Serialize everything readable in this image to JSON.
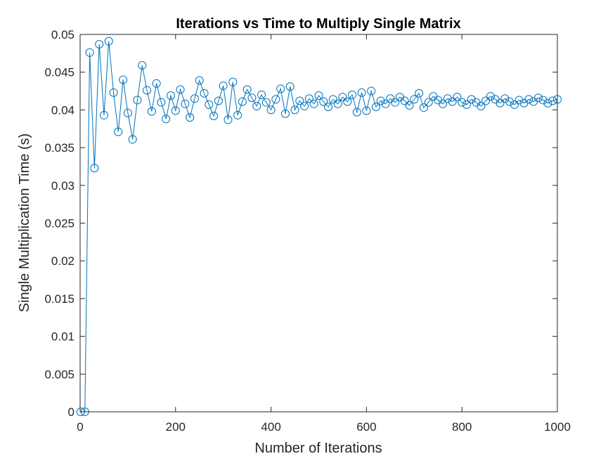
{
  "chart_data": {
    "type": "line",
    "title": "Iterations vs Time to Multiply Single Matrix",
    "xlabel": "Number of Iterations",
    "ylabel": "Single Multiplication Time (s)",
    "xlim": [
      0,
      1000
    ],
    "ylim": [
      0,
      0.05
    ],
    "xticks": [
      0,
      200,
      400,
      600,
      800,
      1000
    ],
    "yticks": [
      0,
      0.005,
      0.01,
      0.015,
      0.02,
      0.025,
      0.03,
      0.035,
      0.04,
      0.045,
      0.05
    ],
    "xtick_labels": [
      "0",
      "200",
      "400",
      "600",
      "800",
      "1000"
    ],
    "ytick_labels": [
      "0",
      "0.005",
      "0.01",
      "0.015",
      "0.02",
      "0.025",
      "0.03",
      "0.035",
      "0.04",
      "0.045",
      "0.05"
    ],
    "grid": false,
    "marker": "circle",
    "color": "#0072BD",
    "series": [
      {
        "x": [
          1,
          10,
          20,
          30,
          40,
          50,
          60,
          70,
          80,
          90,
          100,
          110,
          120,
          130,
          140,
          150,
          160,
          170,
          180,
          190,
          200,
          210,
          220,
          230,
          240,
          250,
          260,
          270,
          280,
          290,
          300,
          310,
          320,
          330,
          340,
          350,
          360,
          370,
          380,
          390,
          400,
          410,
          420,
          430,
          440,
          450,
          460,
          470,
          480,
          490,
          500,
          510,
          520,
          530,
          540,
          550,
          560,
          570,
          580,
          590,
          600,
          610,
          620,
          630,
          640,
          650,
          660,
          670,
          680,
          690,
          700,
          710,
          720,
          730,
          740,
          750,
          760,
          770,
          780,
          790,
          800,
          810,
          820,
          830,
          840,
          850,
          860,
          870,
          880,
          890,
          900,
          910,
          920,
          930,
          940,
          950,
          960,
          970,
          980,
          990,
          1000
        ],
        "y": [
          0,
          0,
          0.0476,
          0.0323,
          0.0487,
          0.0393,
          0.0491,
          0.0423,
          0.0371,
          0.044,
          0.0396,
          0.0361,
          0.0413,
          0.0459,
          0.0426,
          0.0398,
          0.0435,
          0.041,
          0.0388,
          0.0419,
          0.0399,
          0.0427,
          0.0408,
          0.039,
          0.0415,
          0.0439,
          0.0422,
          0.0407,
          0.0392,
          0.0412,
          0.0432,
          0.0387,
          0.0437,
          0.0393,
          0.0411,
          0.0427,
          0.0416,
          0.0405,
          0.042,
          0.041,
          0.04,
          0.0414,
          0.0428,
          0.0395,
          0.0431,
          0.04,
          0.0412,
          0.0405,
          0.0415,
          0.0408,
          0.0419,
          0.0411,
          0.0404,
          0.0414,
          0.0408,
          0.0417,
          0.0411,
          0.042,
          0.0397,
          0.0423,
          0.0399,
          0.0425,
          0.0404,
          0.0412,
          0.0408,
          0.0415,
          0.041,
          0.0417,
          0.0412,
          0.0406,
          0.0414,
          0.0422,
          0.0403,
          0.041,
          0.0418,
          0.0413,
          0.0408,
          0.0415,
          0.0411,
          0.0417,
          0.041,
          0.0407,
          0.0414,
          0.041,
          0.0405,
          0.0412,
          0.0418,
          0.0414,
          0.0409,
          0.0415,
          0.0411,
          0.0407,
          0.0413,
          0.0409,
          0.0414,
          0.0411,
          0.0416,
          0.0413,
          0.0409,
          0.0412,
          0.0414
        ]
      }
    ]
  }
}
